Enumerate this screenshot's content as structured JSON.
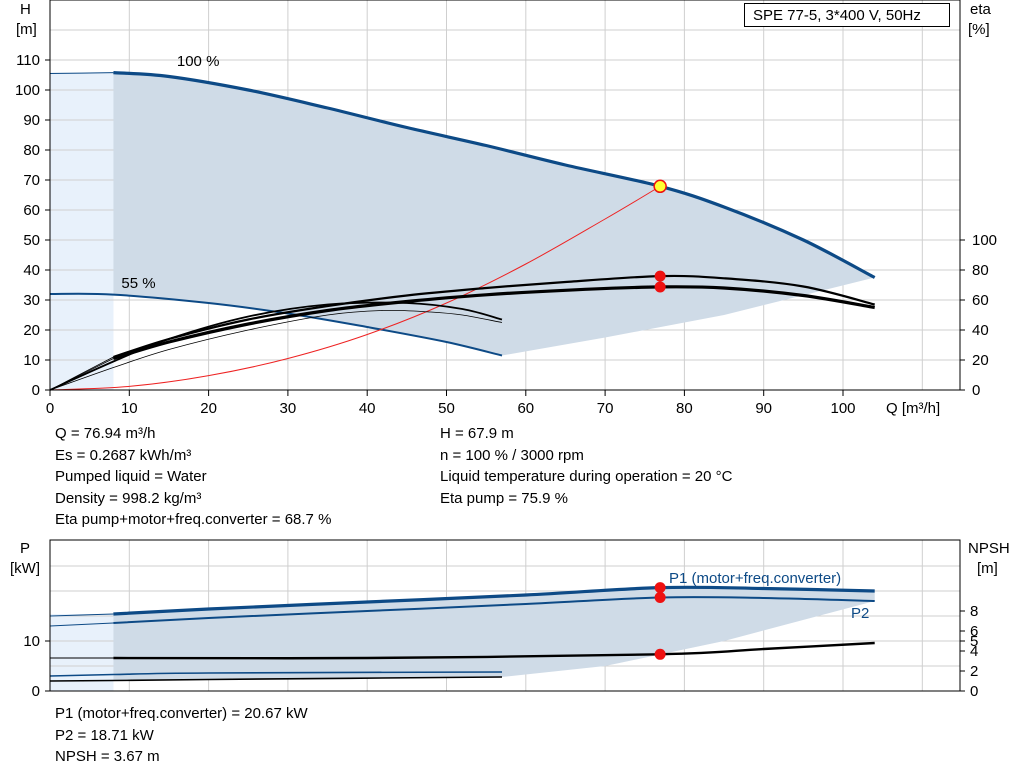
{
  "title_box": "SPE 77-5, 3*400 V, 50Hz",
  "upper_chart": {
    "y_left_label": [
      "H",
      "[m]"
    ],
    "y_right_label": [
      "eta",
      "[%]"
    ],
    "x_label": "Q [m³/h]",
    "x_ticks": [
      "0",
      "10",
      "20",
      "30",
      "40",
      "50",
      "60",
      "70",
      "80",
      "90",
      "100"
    ],
    "y_left_ticks": [
      "0",
      "10",
      "20",
      "30",
      "40",
      "50",
      "60",
      "70",
      "80",
      "90",
      "100",
      "110"
    ],
    "y_right_ticks": [
      "0",
      "20",
      "40",
      "60",
      "80",
      "100"
    ],
    "curve_label_100": "100 %",
    "curve_label_55": "55 %"
  },
  "lower_chart": {
    "y_left_label": [
      "P",
      "[kW]"
    ],
    "y_right_label": [
      "NPSH",
      "[m]"
    ],
    "y_left_ticks": [
      "0",
      "10"
    ],
    "y_right_ticks": [
      "0",
      "2",
      "4",
      "5",
      "6",
      "8"
    ],
    "label_p1": "P1 (motor+freq.converter)",
    "label_p2": "P2"
  },
  "info_left": [
    "Q = 76.94 m³/h",
    "Es = 0.2687 kWh/m³",
    "Pumped liquid = Water",
    "Density = 998.2 kg/m³",
    "Eta pump+motor+freq.converter = 68.7 %"
  ],
  "info_right": [
    "H = 67.9 m",
    "n = 100 % / 3000 rpm",
    "Liquid temperature during operation = 20 °C",
    "Eta pump = 75.9 %"
  ],
  "info_bottom": [
    "P1 (motor+freq.converter) = 20.67 kW",
    "P2 = 18.71 kW",
    "NPSH = 3.67 m"
  ],
  "colors": {
    "primary_curve": "#0d4a86",
    "area_fill": "#cfdbe7",
    "area_fill_light": "#e8f1fb",
    "operating_point": "#ee1111",
    "duty_point": "#ffff33",
    "system_curve": "#ee2222",
    "grid": "#cfcfcf"
  },
  "chart_data": [
    {
      "type": "line",
      "x_unit": "m³/h",
      "xlim": [
        0,
        110
      ],
      "ylim_left": [
        0,
        110
      ],
      "ylim_right": [
        0,
        100
      ],
      "operating_point": {
        "Q": 76.94,
        "H": 67.9,
        "eta_pump": 75.9,
        "eta_total": 68.7
      },
      "series": [
        {
          "name": "100 %",
          "axis": "H",
          "x": [
            0,
            8,
            15,
            25,
            35,
            45,
            55,
            65,
            76.94,
            85,
            95,
            104
          ],
          "y": [
            105.5,
            105.8,
            104.5,
            100,
            94,
            87.5,
            81.5,
            75,
            67.9,
            61,
            50,
            37.5
          ]
        },
        {
          "name": "55 %",
          "axis": "H",
          "x": [
            0,
            8,
            20,
            30,
            40,
            50,
            57
          ],
          "y": [
            32,
            31.8,
            29,
            25.5,
            21,
            16,
            11.5
          ]
        },
        {
          "axis": "H",
          "x": [
            0,
            10,
            20,
            30,
            40,
            50,
            60,
            70,
            76.94
          ],
          "y": [
            0,
            1.2,
            4.8,
            10.5,
            18.5,
            29,
            42,
            57,
            67.9
          ]
        },
        {
          "axis": "eta",
          "x": [
            8,
            15,
            25,
            35,
            45,
            55,
            65,
            76.94,
            85,
            95,
            104
          ],
          "y": [
            21,
            32,
            44,
            53,
            59,
            63.5,
            66.5,
            68.7,
            68,
            63,
            55
          ]
        },
        {
          "axis": "eta",
          "x": [
            8,
            15,
            25,
            35,
            45,
            55,
            65,
            76.94,
            85,
            95,
            104
          ],
          "y": [
            22,
            34,
            47,
            56,
            63,
            68,
            72,
            75.9,
            74.5,
            69,
            57
          ]
        },
        {
          "axis": "eta",
          "x": [
            0,
            8,
            15,
            25,
            35,
            45,
            52,
            57
          ],
          "y": [
            0,
            19,
            34,
            49,
            57,
            58,
            54,
            47
          ]
        },
        {
          "axis": "eta",
          "x": [
            0,
            8,
            15,
            25,
            35,
            42,
            48,
            52,
            57
          ],
          "y": [
            0,
            15,
            27,
            40,
            50,
            53,
            52,
            50,
            45
          ]
        }
      ]
    },
    {
      "type": "line",
      "x_unit": "m³/h",
      "xlim": [
        0,
        110
      ],
      "ylim_left": [
        0,
        20
      ],
      "ylim_right": [
        0,
        10
      ],
      "operating_point": {
        "Q": 76.94,
        "P1": 20.67,
        "P2": 18.71,
        "NPSH": 3.67
      },
      "series": [
        {
          "name": "P1 (motor+freq.converter)",
          "axis": "P",
          "x": [
            0,
            8,
            20,
            40,
            60,
            76.94,
            90,
            104
          ],
          "y": [
            15,
            15.4,
            16.4,
            17.8,
            19.2,
            20.67,
            20.5,
            20
          ]
        },
        {
          "name": "P2",
          "axis": "P",
          "x": [
            0,
            8,
            20,
            40,
            60,
            76.94,
            90,
            104
          ],
          "y": [
            13,
            13.6,
            14.6,
            16,
            17.4,
            18.71,
            18.6,
            18
          ]
        },
        {
          "axis": "P",
          "x": [
            0,
            8,
            20,
            57
          ],
          "y": [
            3,
            3.3,
            3.6,
            3.8
          ]
        },
        {
          "axis": "P",
          "x": [
            0,
            8,
            20,
            57
          ],
          "y": [
            2,
            2.1,
            2.3,
            2.8
          ]
        },
        {
          "axis": "NPSH",
          "x": [
            8,
            40,
            76.94,
            90,
            104
          ],
          "y": [
            3.3,
            3.3,
            3.67,
            4.2,
            4.8
          ]
        }
      ]
    }
  ]
}
